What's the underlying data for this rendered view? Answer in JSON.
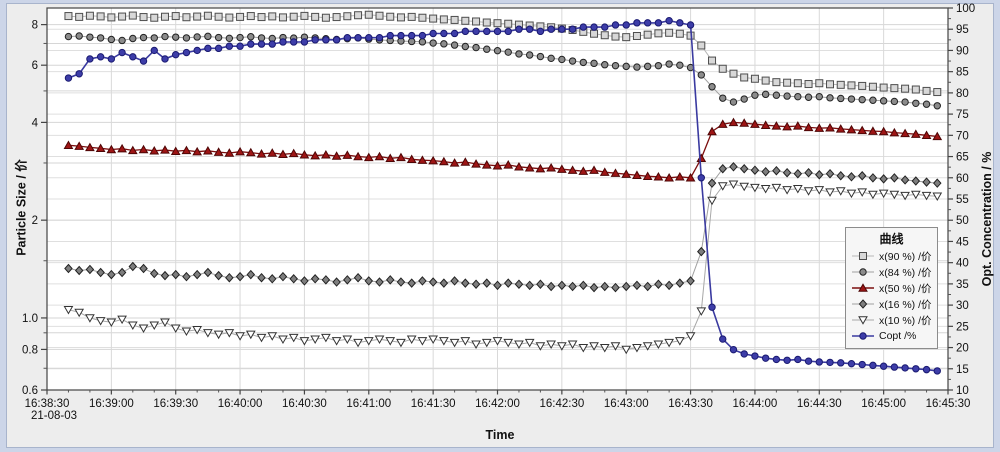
{
  "chart_data": {
    "type": "line",
    "title": "",
    "xlabel": "Time",
    "x_date_label": "21-08-03",
    "ylabel_left": "Particle Size / 价",
    "ylabel_right": "Opt. Concentration / %",
    "x_axis": {
      "start": "16:38:30",
      "end": "16:45:30",
      "major_tick_interval_s": 30,
      "minor_tick_interval_s": 10,
      "tick_labels": [
        "16:38:30",
        "16:39:00",
        "16:39:30",
        "16:40:00",
        "16:40:30",
        "16:41:00",
        "16:41:30",
        "16:42:00",
        "16:42:30",
        "16:43:00",
        "16:43:30",
        "16:44:00",
        "16:44:30",
        "16:45:00",
        "16:45:30"
      ]
    },
    "y_left": {
      "scale": "log",
      "min": 0.6,
      "max": 9.0,
      "tick_labels": [
        "8",
        "6",
        "4",
        "2",
        "1.0",
        "0.8",
        "0.6"
      ],
      "tick_values": [
        8,
        6,
        4,
        2,
        1,
        0.8,
        0.6
      ],
      "minor_tick_values": [
        7,
        5,
        3,
        1.5,
        0.9,
        0.7
      ],
      "grid_values": [
        8,
        7,
        6,
        5,
        4,
        3,
        2,
        1.5,
        1,
        0.9,
        0.8,
        0.7
      ]
    },
    "y_right": {
      "scale": "linear",
      "min": 10,
      "max": 100,
      "major_tick_step": 5,
      "minor_tick_step": 2.5
    },
    "sampling": {
      "reference_time": "16:38:30",
      "first_point_offset_s": 10,
      "interval_s": 5,
      "count": 82
    },
    "legend": {
      "title": "曲线",
      "position": "right-middle"
    },
    "series": [
      {
        "key": "x90",
        "name": "x(90 %) /价",
        "axis": "left",
        "marker": "square-open",
        "color": "#d8d8d8",
        "edge": "#4d4d4d",
        "line_color": "#b8b8b8",
        "values": [
          8.5,
          8.45,
          8.52,
          8.48,
          8.42,
          8.47,
          8.53,
          8.44,
          8.4,
          8.46,
          8.5,
          8.43,
          8.47,
          8.52,
          8.46,
          8.41,
          8.45,
          8.5,
          8.44,
          8.48,
          8.42,
          8.46,
          8.51,
          8.45,
          8.4,
          8.44,
          8.49,
          8.55,
          8.58,
          8.52,
          8.46,
          8.42,
          8.45,
          8.4,
          8.35,
          8.3,
          8.27,
          8.22,
          8.18,
          8.12,
          8.08,
          8.05,
          8.0,
          7.95,
          7.9,
          7.85,
          7.78,
          7.7,
          7.6,
          7.5,
          7.42,
          7.35,
          7.32,
          7.38,
          7.45,
          7.52,
          7.55,
          7.5,
          7.4,
          6.9,
          6.2,
          5.85,
          5.65,
          5.5,
          5.45,
          5.38,
          5.32,
          5.3,
          5.28,
          5.25,
          5.28,
          5.24,
          5.22,
          5.2,
          5.18,
          5.15,
          5.12,
          5.1,
          5.08,
          5.05,
          5.0,
          4.96
        ]
      },
      {
        "key": "x84",
        "name": "x(84 %) /价",
        "axis": "left",
        "marker": "circle-filled",
        "color": "#8c8c8c",
        "edge": "#222222",
        "line_color": "#a0a0a0",
        "values": [
          7.35,
          7.38,
          7.32,
          7.28,
          7.2,
          7.15,
          7.25,
          7.3,
          7.28,
          7.35,
          7.32,
          7.28,
          7.33,
          7.36,
          7.3,
          7.26,
          7.3,
          7.34,
          7.28,
          7.25,
          7.3,
          7.27,
          7.32,
          7.28,
          7.24,
          7.2,
          7.24,
          7.28,
          7.22,
          7.18,
          7.15,
          7.12,
          7.1,
          7.08,
          7.02,
          6.98,
          6.92,
          6.85,
          6.8,
          6.72,
          6.65,
          6.58,
          6.5,
          6.45,
          6.38,
          6.3,
          6.25,
          6.18,
          6.12,
          6.08,
          6.02,
          5.98,
          5.95,
          5.92,
          5.95,
          5.98,
          6.05,
          6.0,
          5.9,
          5.6,
          5.15,
          4.75,
          4.62,
          4.72,
          4.85,
          4.88,
          4.85,
          4.82,
          4.8,
          4.78,
          4.8,
          4.76,
          4.74,
          4.72,
          4.7,
          4.68,
          4.66,
          4.64,
          4.62,
          4.58,
          4.55,
          4.5
        ]
      },
      {
        "key": "x50",
        "name": "x(50 %) /价",
        "axis": "left",
        "marker": "triangle-up-filled",
        "color": "#9e1515",
        "edge": "#4d0606",
        "line_color": "#7c0e0e",
        "values": [
          3.4,
          3.38,
          3.35,
          3.33,
          3.3,
          3.32,
          3.28,
          3.3,
          3.27,
          3.29,
          3.26,
          3.28,
          3.25,
          3.27,
          3.24,
          3.22,
          3.25,
          3.23,
          3.2,
          3.22,
          3.19,
          3.21,
          3.18,
          3.16,
          3.18,
          3.15,
          3.17,
          3.14,
          3.12,
          3.14,
          3.1,
          3.12,
          3.08,
          3.06,
          3.05,
          3.03,
          3.0,
          3.02,
          2.98,
          2.96,
          2.94,
          2.96,
          2.92,
          2.9,
          2.88,
          2.9,
          2.87,
          2.85,
          2.83,
          2.85,
          2.81,
          2.79,
          2.77,
          2.75,
          2.73,
          2.72,
          2.7,
          2.72,
          2.7,
          3.1,
          3.75,
          3.95,
          4.0,
          3.98,
          3.95,
          3.92,
          3.9,
          3.88,
          3.9,
          3.86,
          3.84,
          3.85,
          3.82,
          3.8,
          3.78,
          3.76,
          3.75,
          3.72,
          3.7,
          3.68,
          3.65,
          3.62
        ]
      },
      {
        "key": "x16",
        "name": "x(16 %) /价",
        "axis": "left",
        "marker": "diamond-filled",
        "color": "#7e7e7e",
        "edge": "#222222",
        "line_color": "#a0a0a0",
        "values": [
          1.42,
          1.4,
          1.41,
          1.38,
          1.36,
          1.38,
          1.44,
          1.42,
          1.37,
          1.35,
          1.36,
          1.34,
          1.36,
          1.38,
          1.35,
          1.33,
          1.34,
          1.36,
          1.33,
          1.32,
          1.34,
          1.32,
          1.3,
          1.32,
          1.31,
          1.29,
          1.31,
          1.33,
          1.3,
          1.29,
          1.31,
          1.29,
          1.28,
          1.3,
          1.29,
          1.28,
          1.3,
          1.28,
          1.27,
          1.28,
          1.26,
          1.28,
          1.27,
          1.26,
          1.27,
          1.25,
          1.26,
          1.25,
          1.26,
          1.24,
          1.25,
          1.24,
          1.25,
          1.26,
          1.25,
          1.27,
          1.26,
          1.28,
          1.3,
          1.6,
          2.6,
          2.88,
          2.92,
          2.88,
          2.85,
          2.82,
          2.84,
          2.8,
          2.78,
          2.8,
          2.76,
          2.78,
          2.74,
          2.72,
          2.74,
          2.7,
          2.68,
          2.7,
          2.66,
          2.64,
          2.62,
          2.6
        ]
      },
      {
        "key": "x10",
        "name": "x(10 %) /价",
        "axis": "left",
        "marker": "triangle-down-open",
        "color": "#ffffff",
        "edge": "#333333",
        "line_color": "#a8a8a8",
        "values": [
          1.06,
          1.04,
          1.0,
          0.98,
          0.97,
          0.99,
          0.95,
          0.93,
          0.95,
          0.97,
          0.93,
          0.91,
          0.92,
          0.9,
          0.89,
          0.9,
          0.88,
          0.89,
          0.87,
          0.88,
          0.86,
          0.87,
          0.85,
          0.86,
          0.87,
          0.85,
          0.86,
          0.84,
          0.85,
          0.86,
          0.85,
          0.84,
          0.86,
          0.85,
          0.86,
          0.85,
          0.84,
          0.85,
          0.83,
          0.84,
          0.85,
          0.84,
          0.83,
          0.84,
          0.82,
          0.83,
          0.82,
          0.83,
          0.81,
          0.82,
          0.81,
          0.82,
          0.8,
          0.81,
          0.82,
          0.83,
          0.84,
          0.85,
          0.88,
          1.05,
          2.3,
          2.55,
          2.58,
          2.54,
          2.52,
          2.5,
          2.52,
          2.48,
          2.5,
          2.46,
          2.48,
          2.44,
          2.46,
          2.42,
          2.44,
          2.4,
          2.42,
          2.4,
          2.38,
          2.4,
          2.38,
          2.37
        ]
      },
      {
        "key": "copt",
        "name": "Copt /%",
        "axis": "right",
        "marker": "circle-filled",
        "color": "#3d3da8",
        "edge": "#191970",
        "line_color": "#3a3aa0",
        "values": [
          83.5,
          84.5,
          88.0,
          88.5,
          88.0,
          89.5,
          88.5,
          87.5,
          90.0,
          88.0,
          89.0,
          89.5,
          90.0,
          90.5,
          90.5,
          91.0,
          91.0,
          91.5,
          91.5,
          91.5,
          92.0,
          92.0,
          92.0,
          92.5,
          92.5,
          92.5,
          93.0,
          93.0,
          93.0,
          93.0,
          93.5,
          93.5,
          93.5,
          93.5,
          94.0,
          94.0,
          94.0,
          94.5,
          94.5,
          94.5,
          94.5,
          94.5,
          95.0,
          95.0,
          94.5,
          95.0,
          95.0,
          95.0,
          95.5,
          95.5,
          95.5,
          96.0,
          96.0,
          96.5,
          96.5,
          96.5,
          97.0,
          96.5,
          96.0,
          60.0,
          29.5,
          22.0,
          19.5,
          18.5,
          18.0,
          17.5,
          17.2,
          17.0,
          17.2,
          16.8,
          16.6,
          16.5,
          16.4,
          16.2,
          16.0,
          15.8,
          15.6,
          15.4,
          15.2,
          15.0,
          14.8,
          14.5
        ]
      }
    ]
  }
}
